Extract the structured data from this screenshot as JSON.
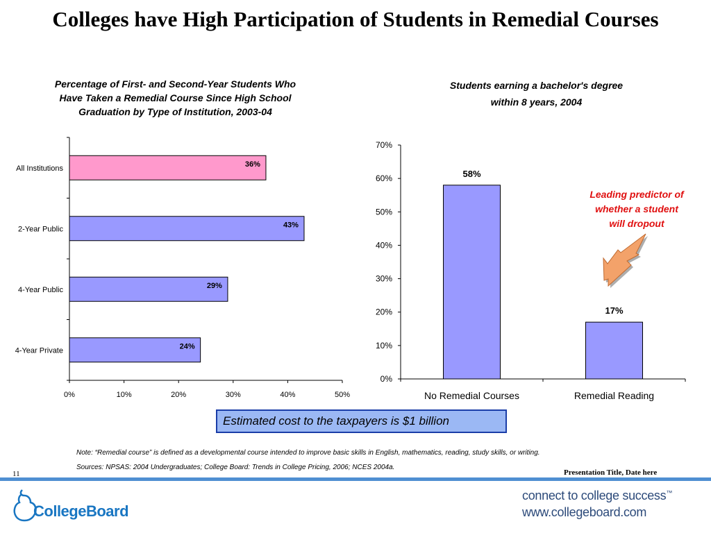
{
  "slide": {
    "title": "Colleges have High Participation of Students in Remedial Courses",
    "number": "11",
    "presentation_title": "Presentation Title, Date here"
  },
  "callout": {
    "text_lines": [
      "Leading predictor of",
      "whether a student",
      "will dropout"
    ],
    "text_color": "#e01010",
    "arrow_icon": "down-left-arrow-icon",
    "arrow_color": "#f3a26a"
  },
  "cost_box": {
    "text": "Estimated cost to the taxpayers is $1 billion",
    "fill": "#9bb8f4",
    "border": "#1a3da8"
  },
  "notes": {
    "note": "Note: “Remedial course” is defined as a developmental course intended to improve basic skills in English, mathematics, reading, study skills, or writing.",
    "sources": "Sources: NPSAS: 2004 Undergraduates; College Board: Trends in College Pricing, 2006; NCES 2004a."
  },
  "footer": {
    "logo_text": "CollegeBoard",
    "logo_icon": "acorn-outline-icon",
    "tagline": "connect to college success",
    "tagline_mark": "™",
    "website": "www.collegeboard.com",
    "rule_color": "#4f8fd2",
    "logo_color": "#1976c2"
  },
  "chart_data": [
    {
      "type": "bar",
      "orientation": "horizontal",
      "title": "Percentage of First- and Second-Year Students Who Have Taken a Remedial Course Since High School Graduation by Type of Institution, 2003-04",
      "title_lines": [
        "Percentage of First- and Second-Year Students Who",
        "Have Taken a Remedial Course Since High School",
        "Graduation by Type of Institution, 2003-04"
      ],
      "categories": [
        "All Institutions",
        "2-Year Public",
        "4-Year Public",
        "4-Year Private"
      ],
      "values": [
        36,
        43,
        29,
        24
      ],
      "value_labels": [
        "36%",
        "43%",
        "29%",
        "24%"
      ],
      "xlim": [
        0,
        50
      ],
      "x_ticks": [
        "0%",
        "10%",
        "20%",
        "30%",
        "40%",
        "50%"
      ],
      "colors": [
        "#ff99cc",
        "#9999ff",
        "#9999ff",
        "#9999ff"
      ],
      "grid": false,
      "legend": "none"
    },
    {
      "type": "bar",
      "title": "Students earning a bachelor's degree within 8 years, 2004",
      "title_lines": [
        "Students earning a bachelor's degree",
        "within 8 years, 2004"
      ],
      "categories": [
        "No Remedial Courses",
        "Remedial Reading"
      ],
      "values": [
        58,
        17
      ],
      "value_labels": [
        "58%",
        "17%"
      ],
      "ylim": [
        0,
        70
      ],
      "y_ticks": [
        "0%",
        "10%",
        "20%",
        "30%",
        "40%",
        "50%",
        "60%",
        "70%"
      ],
      "colors": [
        "#9999ff",
        "#9999ff"
      ],
      "grid": false,
      "legend": "none"
    }
  ]
}
